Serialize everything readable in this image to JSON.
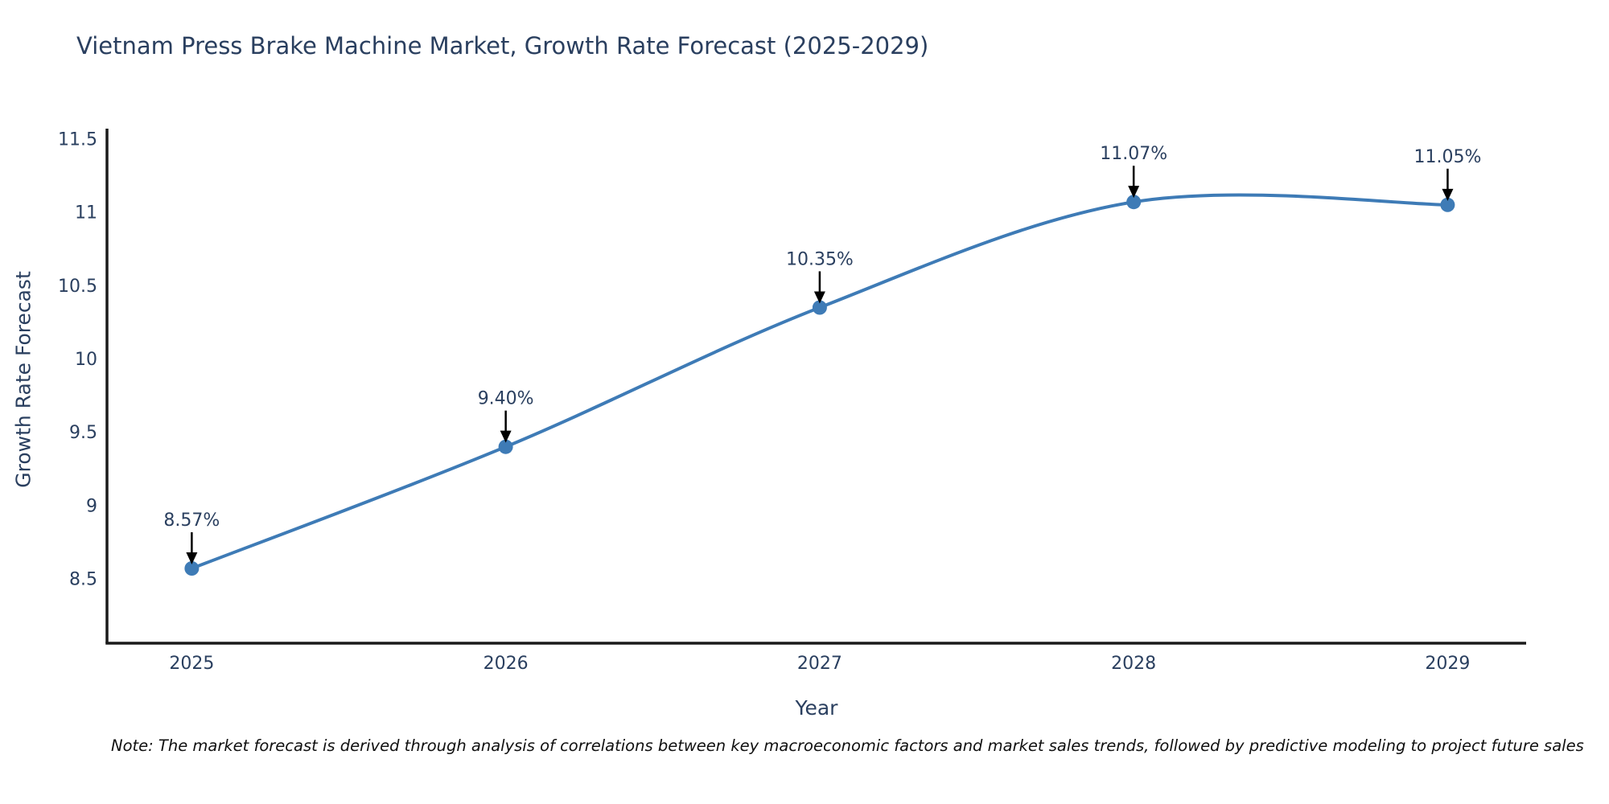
{
  "title": "Vietnam Press Brake Machine Market, Growth Rate Forecast (2025-2029)",
  "note": "Note: The market forecast is derived through analysis of correlations between key macroeconomic factors and market sales trends, followed by predictive modeling to project future sales",
  "chart_data": {
    "type": "line",
    "title": "Vietnam Press Brake Machine Market, Growth Rate Forecast (2025-2029)",
    "xlabel": "Year",
    "ylabel": "Growth Rate Forecast",
    "x": [
      2025,
      2026,
      2027,
      2028,
      2029
    ],
    "values": [
      8.57,
      9.4,
      10.35,
      11.07,
      11.05
    ],
    "point_labels": [
      "8.57%",
      "9.40%",
      "10.35%",
      "11.07%",
      "11.05%"
    ],
    "xticks": [
      2025,
      2026,
      2027,
      2028,
      2029
    ],
    "yticks": [
      8.5,
      9,
      9.5,
      10,
      10.5,
      11,
      11.5
    ],
    "xlim": [
      2024.73,
      2029.25
    ],
    "ylim": [
      8.06,
      11.57
    ],
    "line_shape": "spline",
    "grid": false,
    "legend": "none",
    "colors": {
      "line": "#3e7bb6",
      "marker": "#3e7bb6",
      "axis": "#1a1a1a",
      "tick_text": "#2a3f5f",
      "annotation_text": "#2a3f5f",
      "arrow": "#000000"
    }
  }
}
